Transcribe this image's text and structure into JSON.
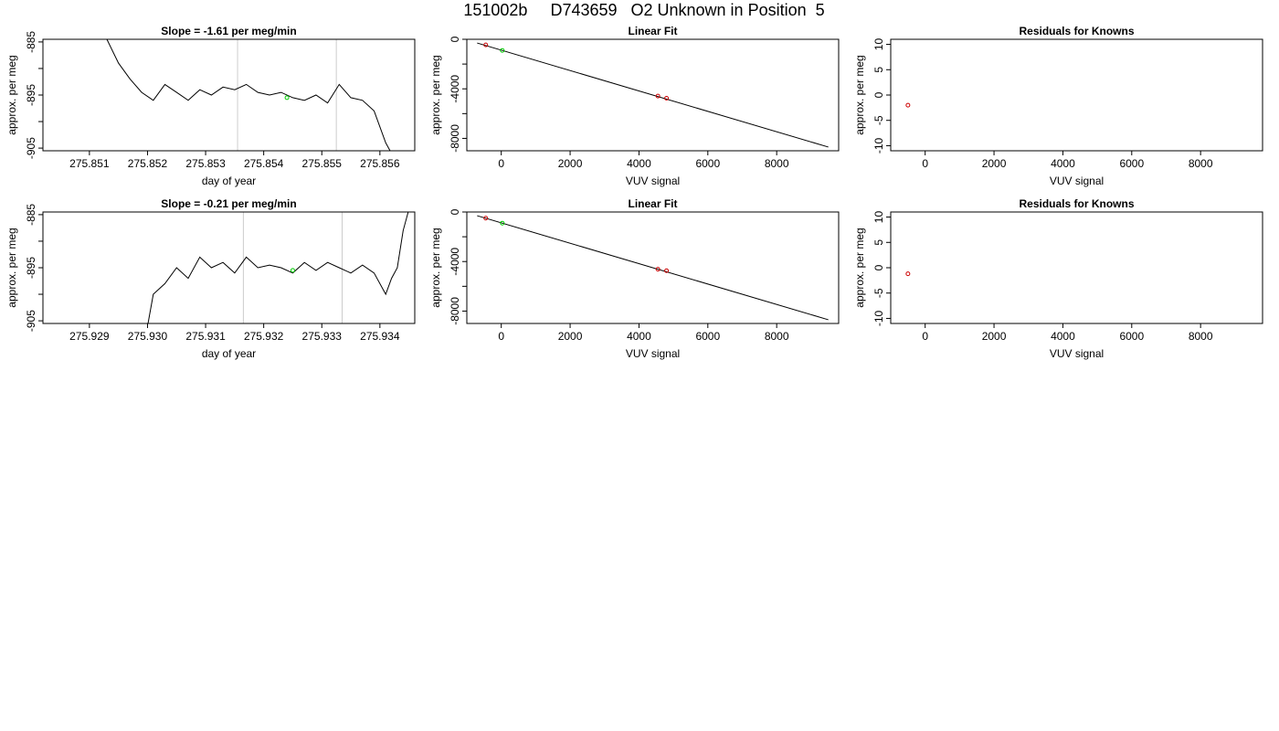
{
  "figure": {
    "title": "151002b     D743659   O2 Unknown in Position  5"
  },
  "chart_data": [
    {
      "type": "line",
      "title": "Slope =  -1.61  per meg/min",
      "xlabel": "day of year",
      "ylabel": "approx. per meg",
      "xlim": [
        275.8502,
        275.8566
      ],
      "ylim": [
        -905.5,
        -884.5
      ],
      "xticks": [
        275.851,
        275.852,
        275.853,
        275.854,
        275.855,
        275.856
      ],
      "xtick_labels": [
        "275.851",
        "275.852",
        "275.853",
        "275.854",
        "275.855",
        "275.856"
      ],
      "yticks": [
        -885,
        -890,
        -895,
        -900,
        -905
      ],
      "ytick_labels": [
        "-885",
        "",
        "-895",
        "",
        "-905"
      ],
      "vlines": [
        275.85355,
        275.85525
      ],
      "vline_color": "#cccccc",
      "series_color": "#000000",
      "x": [
        275.8513,
        275.8515,
        275.8517,
        275.8519,
        275.8521,
        275.8523,
        275.8525,
        275.8527,
        275.8529,
        275.8531,
        275.8533,
        275.8535,
        275.8537,
        275.8539,
        275.8541,
        275.8543,
        275.8545,
        275.8547,
        275.8549,
        275.8551,
        275.8553,
        275.8555,
        275.8557,
        275.8559,
        275.8561,
        275.8562
      ],
      "y": [
        -884.5,
        -889,
        -892,
        -894.5,
        -896,
        -893,
        -894.5,
        -896,
        -894,
        -895,
        -893.5,
        -894,
        -893,
        -894.5,
        -895,
        -894.5,
        -895.5,
        -896,
        -895,
        -896.5,
        -893,
        -895.5,
        -896,
        -898,
        -904,
        -906
      ],
      "marker": {
        "x": 275.8544,
        "y": -895.5,
        "color": "#00cc00"
      }
    },
    {
      "type": "scatter",
      "title": "Linear Fit",
      "xlabel": "VUV signal",
      "ylabel": "approx. per meg",
      "xlim": [
        -1000,
        9800
      ],
      "ylim": [
        -9000,
        0
      ],
      "xticks": [
        0,
        2000,
        4000,
        6000,
        8000
      ],
      "xtick_labels": [
        "0",
        "2000",
        "4000",
        "6000",
        "8000"
      ],
      "yticks": [
        0,
        -2000,
        -4000,
        -6000,
        -8000
      ],
      "ytick_labels": [
        "0",
        "",
        "-4000",
        "",
        "-8000"
      ],
      "fit_line": {
        "x": [
          -700,
          9500
        ],
        "y": [
          -300,
          -8700
        ],
        "color": "#000000"
      },
      "points": [
        {
          "x": -450,
          "y": -450,
          "color": "#cc0000"
        },
        {
          "x": 4550,
          "y": -4580,
          "color": "#cc0000"
        },
        {
          "x": 4800,
          "y": -4760,
          "color": "#cc0000"
        }
      ],
      "unknown_points": [
        {
          "x": 30,
          "y": -900,
          "color": "#00cc00"
        }
      ]
    },
    {
      "type": "scatter",
      "title": "Residuals for Knowns",
      "xlabel": "VUV signal",
      "ylabel": "approx. per meg",
      "xlim": [
        -1000,
        9800
      ],
      "ylim": [
        -11,
        11
      ],
      "xticks": [
        0,
        2000,
        4000,
        6000,
        8000
      ],
      "xtick_labels": [
        "0",
        "2000",
        "4000",
        "6000",
        "8000"
      ],
      "yticks": [
        10,
        5,
        0,
        -5,
        -10
      ],
      "ytick_labels": [
        "10",
        "5",
        "0",
        "-5",
        "-10"
      ],
      "points": [
        {
          "x": -500,
          "y": -2,
          "color": "#cc0000"
        }
      ]
    },
    {
      "type": "line",
      "title": "Slope =  -0.21  per meg/min",
      "xlabel": "day of year",
      "ylabel": "approx. per meg",
      "xlim": [
        275.9282,
        275.9346
      ],
      "ylim": [
        -905.5,
        -884.5
      ],
      "xticks": [
        275.929,
        275.93,
        275.931,
        275.932,
        275.933,
        275.934
      ],
      "xtick_labels": [
        "275.929",
        "275.930",
        "275.931",
        "275.932",
        "275.933",
        "275.934"
      ],
      "yticks": [
        -885,
        -890,
        -895,
        -900,
        -905
      ],
      "ytick_labels": [
        "-885",
        "",
        "-895",
        "",
        "-905"
      ],
      "vlines": [
        275.93165,
        275.93335
      ],
      "vline_color": "#cccccc",
      "series_color": "#000000",
      "x": [
        275.93,
        275.9301,
        275.9303,
        275.9305,
        275.9307,
        275.9309,
        275.9311,
        275.9313,
        275.9315,
        275.9317,
        275.9319,
        275.9321,
        275.9323,
        275.9325,
        275.9327,
        275.9329,
        275.9331,
        275.9333,
        275.9335,
        275.9337,
        275.9339,
        275.9341,
        275.9342,
        275.9343,
        275.9344,
        275.9345
      ],
      "y": [
        -906,
        -900,
        -898,
        -895,
        -897,
        -893,
        -895,
        -894,
        -896,
        -893,
        -895,
        -894.5,
        -895,
        -896,
        -894,
        -895.5,
        -894,
        -895,
        -896,
        -894.5,
        -896,
        -900,
        -897,
        -895,
        -888,
        -884
      ],
      "marker": {
        "x": 275.9325,
        "y": -895.5,
        "color": "#00cc00"
      }
    },
    {
      "type": "scatter",
      "title": "Linear Fit",
      "xlabel": "VUV signal",
      "ylabel": "approx. per meg",
      "xlim": [
        -1000,
        9800
      ],
      "ylim": [
        -9000,
        0
      ],
      "xticks": [
        0,
        2000,
        4000,
        6000,
        8000
      ],
      "xtick_labels": [
        "0",
        "2000",
        "4000",
        "6000",
        "8000"
      ],
      "yticks": [
        0,
        -2000,
        -4000,
        -6000,
        -8000
      ],
      "ytick_labels": [
        "0",
        "",
        "-4000",
        "",
        "-8000"
      ],
      "fit_line": {
        "x": [
          -700,
          9500
        ],
        "y": [
          -300,
          -8700
        ],
        "color": "#000000"
      },
      "points": [
        {
          "x": -450,
          "y": -500,
          "color": "#cc0000"
        },
        {
          "x": 4550,
          "y": -4620,
          "color": "#cc0000"
        },
        {
          "x": 4800,
          "y": -4740,
          "color": "#cc0000"
        }
      ],
      "unknown_points": [
        {
          "x": 30,
          "y": -900,
          "color": "#00cc00"
        }
      ]
    },
    {
      "type": "scatter",
      "title": "Residuals for Knowns",
      "xlabel": "VUV signal",
      "ylabel": "approx. per meg",
      "xlim": [
        -1000,
        9800
      ],
      "ylim": [
        -11,
        11
      ],
      "xticks": [
        0,
        2000,
        4000,
        6000,
        8000
      ],
      "xtick_labels": [
        "0",
        "2000",
        "4000",
        "6000",
        "8000"
      ],
      "yticks": [
        10,
        5,
        0,
        -5,
        -10
      ],
      "ytick_labels": [
        "10",
        "5",
        "0",
        "-5",
        "-10"
      ],
      "points": [
        {
          "x": -500,
          "y": -1.2,
          "color": "#cc0000"
        }
      ]
    }
  ]
}
